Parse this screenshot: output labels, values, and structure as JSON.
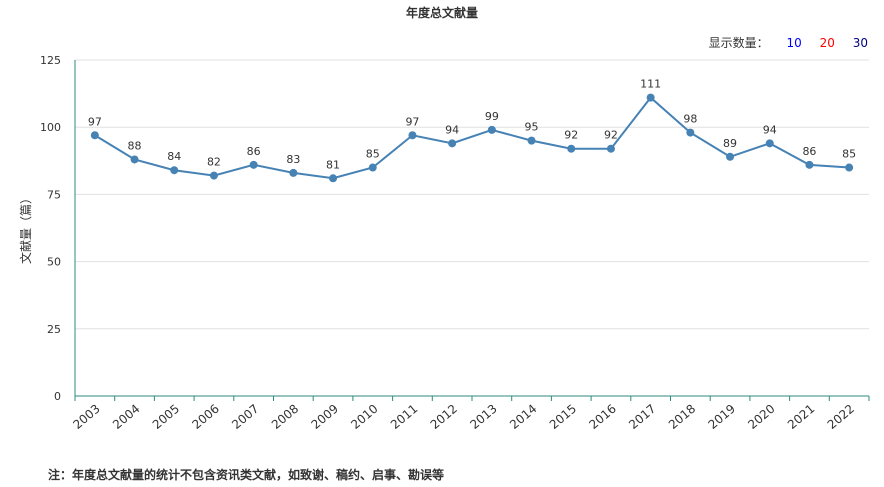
{
  "header": {
    "title": "年度总文献量",
    "count_label": "显示数量：",
    "count_options": [
      {
        "label": "10",
        "color": "#0000ff"
      },
      {
        "label": "20",
        "color": "#ff0000"
      },
      {
        "label": "30",
        "color": "#000080"
      }
    ]
  },
  "footnote": "注：年度总文献量的统计不包含资讯类文献，如致谢、稿约、启事、勘误等",
  "colors": {
    "line": "#4682b4",
    "axis": "#2e8b7f",
    "grid": "#e0e0e0"
  },
  "chart_data": {
    "type": "line",
    "title": "年度总文献量",
    "xlabel": "",
    "ylabel": "文献量（篇）",
    "ylim": [
      0,
      125
    ],
    "yticks": [
      0,
      25,
      50,
      75,
      100,
      125
    ],
    "grid": true,
    "categories": [
      "2003",
      "2004",
      "2005",
      "2006",
      "2007",
      "2008",
      "2009",
      "2010",
      "2011",
      "2012",
      "2013",
      "2014",
      "2015",
      "2016",
      "2017",
      "2018",
      "2019",
      "2020",
      "2021",
      "2022"
    ],
    "series": [
      {
        "values": [
          97,
          88,
          84,
          82,
          86,
          83,
          81,
          85,
          97,
          94,
          99,
          95,
          92,
          92,
          111,
          98,
          89,
          94,
          86,
          85
        ]
      }
    ]
  }
}
